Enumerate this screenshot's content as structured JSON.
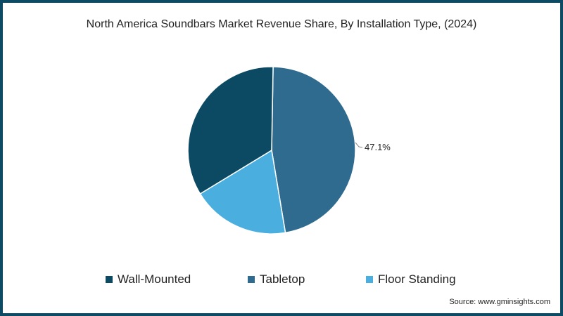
{
  "title": "North America Soundbars Market Revenue Share, By Installation Type, (2024)",
  "source": "Source: www.gminsights.com",
  "colors": {
    "wall_mounted": "#0b4a62",
    "tabletop": "#2e6b8f",
    "floor_standing": "#4aaedf",
    "border": "#0d4a63"
  },
  "legend": [
    {
      "label": "Wall-Mounted",
      "color": "#0b4a62"
    },
    {
      "label": "Tabletop",
      "color": "#2e6b8f"
    },
    {
      "label": "Floor Standing",
      "color": "#4aaedf"
    }
  ],
  "chart_data": {
    "type": "pie",
    "title": "North America Soundbars Market Revenue Share, By Installation Type, (2024)",
    "categories": [
      "Tabletop",
      "Floor Standing",
      "Wall-Mounted"
    ],
    "values": [
      47.1,
      18.9,
      34.0
    ],
    "data_labels": [
      {
        "category": "Tabletop",
        "text": "47.1%"
      }
    ],
    "legend_position": "bottom",
    "start_angle": "top, clockwise",
    "source": "Source: www.gminsights.com"
  },
  "label_tabletop": "47.1%"
}
